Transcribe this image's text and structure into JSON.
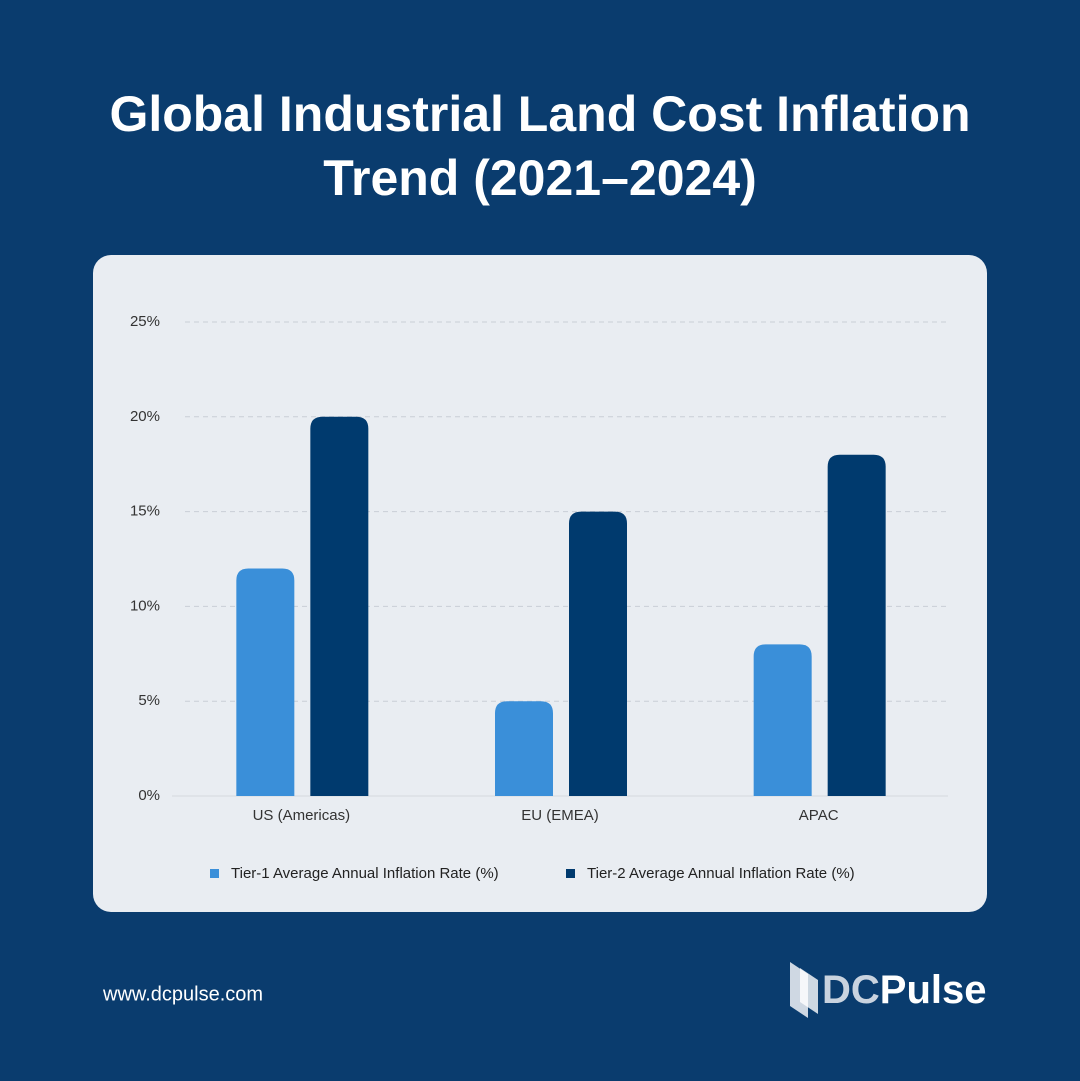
{
  "chart_data": {
    "type": "bar",
    "title": "Global Industrial Land Cost Inflation Trend (2021–2024)",
    "categories": [
      "US (Americas)",
      "EU (EMEA)",
      "APAC"
    ],
    "series": [
      {
        "name": "Tier-1 Average Annual Inflation Rate (%)",
        "color": "#3a8fd9",
        "values": [
          12,
          5,
          8
        ]
      },
      {
        "name": "Tier-2 Average Annual Inflation Rate (%)",
        "color": "#003a6e",
        "values": [
          20,
          15,
          18
        ]
      }
    ],
    "ylim": [
      0,
      25
    ],
    "yticks": [
      {
        "value": 0,
        "label": "0%"
      },
      {
        "value": 5,
        "label": "5%"
      },
      {
        "value": 10,
        "label": "10%"
      },
      {
        "value": 15,
        "label": "15%"
      },
      {
        "value": 20,
        "label": "20%"
      },
      {
        "value": 25,
        "label": "25%"
      }
    ],
    "grid": true,
    "legend": "bottom"
  },
  "footer": {
    "website": "www.dcpulse.com",
    "brand_prefix": "DC",
    "brand_suffix": "Pulse"
  }
}
